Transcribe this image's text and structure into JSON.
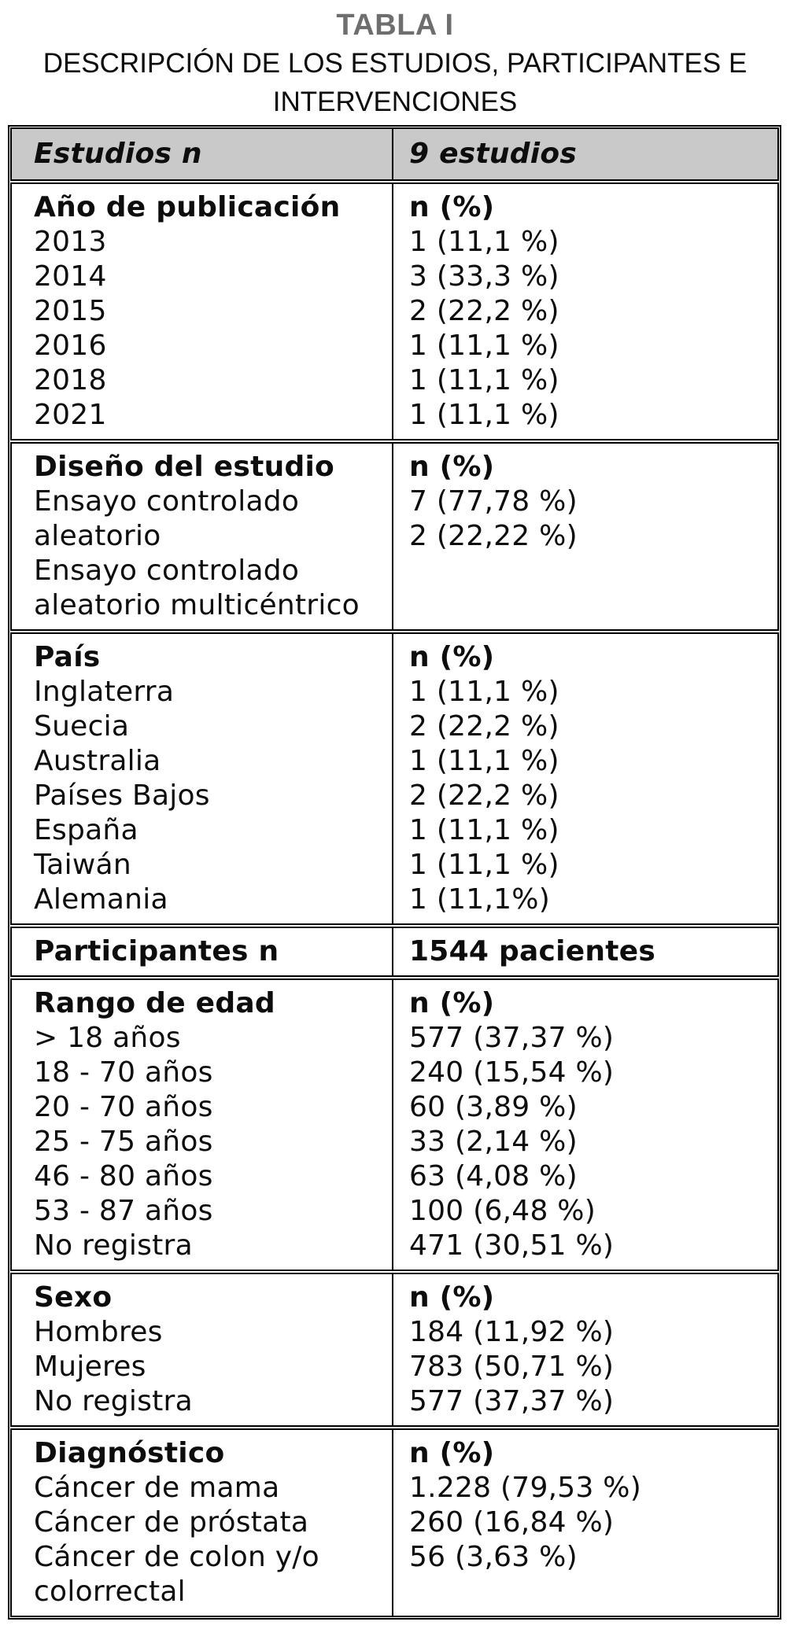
{
  "page": {
    "title": "TABLA I",
    "subtitle_lines": [
      "DESCRIPCIÓN DE LOS ESTUDIOS, PARTICIPANTES E",
      "INTERVENCIONES"
    ]
  },
  "colors": {
    "header_bg": "#c9c9c9",
    "title_gray": "#6e6e6e",
    "border": "#000000",
    "text": "#0d0d0d"
  },
  "table": {
    "header": {
      "left": "Estudios n",
      "right": "9 estudios"
    },
    "sections": [
      {
        "label": "Año de publicación",
        "value_header": "n (%)",
        "left_lines": [
          "2013",
          "2014",
          "2015",
          "2016",
          "2018",
          "2021"
        ],
        "right_lines": [
          "1 (11,1 %)",
          "3 (33,3 %)",
          "2 (22,2 %)",
          "1 (11,1 %)",
          "1 (11,1 %)",
          "1 (11,1 %)"
        ]
      },
      {
        "label": "Diseño del estudio",
        "value_header": "n (%)",
        "left_lines": [
          "Ensayo controlado",
          "aleatorio",
          "Ensayo controlado",
          "aleatorio multicéntrico"
        ],
        "right_lines": [
          "7 (77,78 %)",
          "2 (22,22 %)"
        ]
      },
      {
        "label": "País",
        "value_header": "n (%)",
        "left_lines": [
          "Inglaterra",
          "Suecia",
          "Australia",
          "Países Bajos",
          "España",
          "Taiwán",
          "Alemania"
        ],
        "right_lines": [
          "1 (11,1 %)",
          "2 (22,2 %)",
          "1 (11,1 %)",
          "2 (22,2 %)",
          "1 (11,1 %)",
          "1 (11,1 %)",
          "1 (11,1%)"
        ]
      },
      {
        "label": "Participantes n",
        "value_header": "1544 pacientes",
        "left_lines": [],
        "right_lines": []
      },
      {
        "label": "Rango de edad",
        "value_header": "n (%)",
        "left_lines": [
          "> 18 años",
          "18 - 70 años",
          "20 - 70 años",
          "25 - 75 años",
          "46 - 80 años",
          "53 - 87 años",
          "No registra"
        ],
        "right_lines": [
          "577 (37,37 %)",
          "240 (15,54 %)",
          "60 (3,89 %)",
          "33 (2,14 %)",
          "63 (4,08 %)",
          "100 (6,48 %)",
          "471 (30,51 %)"
        ]
      },
      {
        "label": "Sexo",
        "value_header": "n (%)",
        "left_lines": [
          "Hombres",
          "Mujeres",
          "No registra"
        ],
        "right_lines": [
          "184 (11,92 %)",
          "783 (50,71 %)",
          "577 (37,37 %)"
        ]
      },
      {
        "label": "Diagnóstico",
        "value_header": "n (%)",
        "left_lines": [
          "Cáncer de mama",
          "Cáncer de próstata",
          "Cáncer de colon y/o",
          "colorrectal"
        ],
        "right_lines": [
          "1.228 (79,53 %)",
          "260 (16,84 %)",
          "56 (3,63 %)"
        ]
      }
    ]
  }
}
